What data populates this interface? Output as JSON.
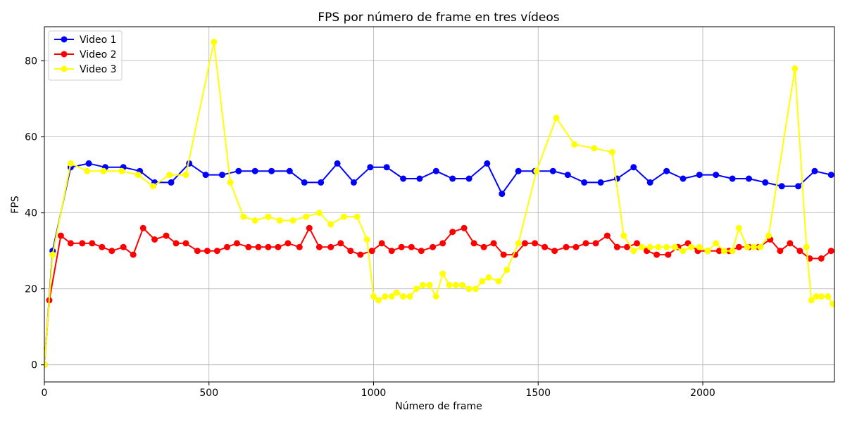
{
  "chart_data": {
    "type": "line",
    "title": "FPS por número de frame en tres vídeos",
    "xlabel": "Número de frame",
    "ylabel": "FPS",
    "xlim": [
      0,
      2400
    ],
    "ylim": [
      -4.5,
      89
    ],
    "xticks": [
      0,
      500,
      1000,
      1500,
      2000
    ],
    "yticks": [
      0,
      20,
      40,
      60,
      80
    ],
    "grid": true,
    "legend_position": "top-left",
    "series": [
      {
        "name": "Video 1",
        "color": "#0000ff",
        "points": [
          [
            0,
            0
          ],
          [
            25,
            30
          ],
          [
            80,
            52
          ],
          [
            135,
            53
          ],
          [
            185,
            52
          ],
          [
            240,
            52
          ],
          [
            290,
            51
          ],
          [
            335,
            48
          ],
          [
            385,
            48
          ],
          [
            440,
            53
          ],
          [
            490,
            50
          ],
          [
            540,
            50
          ],
          [
            590,
            51
          ],
          [
            640,
            51
          ],
          [
            690,
            51
          ],
          [
            745,
            51
          ],
          [
            790,
            48
          ],
          [
            840,
            48
          ],
          [
            890,
            53
          ],
          [
            940,
            48
          ],
          [
            990,
            52
          ],
          [
            1040,
            52
          ],
          [
            1090,
            49
          ],
          [
            1140,
            49
          ],
          [
            1190,
            51
          ],
          [
            1240,
            49
          ],
          [
            1290,
            49
          ],
          [
            1345,
            53
          ],
          [
            1390,
            45
          ],
          [
            1440,
            51
          ],
          [
            1490,
            51
          ],
          [
            1545,
            51
          ],
          [
            1590,
            50
          ],
          [
            1640,
            48
          ],
          [
            1690,
            48
          ],
          [
            1740,
            49
          ],
          [
            1790,
            52
          ],
          [
            1840,
            48
          ],
          [
            1890,
            51
          ],
          [
            1940,
            49
          ],
          [
            1990,
            50
          ],
          [
            2040,
            50
          ],
          [
            2090,
            49
          ],
          [
            2140,
            49
          ],
          [
            2190,
            48
          ],
          [
            2240,
            47
          ],
          [
            2290,
            47
          ],
          [
            2340,
            51
          ],
          [
            2390,
            50
          ]
        ]
      },
      {
        "name": "Video 2",
        "color": "#ff0000",
        "points": [
          [
            0,
            0
          ],
          [
            15,
            17
          ],
          [
            50,
            34
          ],
          [
            80,
            32
          ],
          [
            115,
            32
          ],
          [
            145,
            32
          ],
          [
            175,
            31
          ],
          [
            205,
            30
          ],
          [
            240,
            31
          ],
          [
            270,
            29
          ],
          [
            300,
            36
          ],
          [
            335,
            33
          ],
          [
            370,
            34
          ],
          [
            400,
            32
          ],
          [
            430,
            32
          ],
          [
            465,
            30
          ],
          [
            495,
            30
          ],
          [
            525,
            30
          ],
          [
            555,
            31
          ],
          [
            585,
            32
          ],
          [
            620,
            31
          ],
          [
            650,
            31
          ],
          [
            680,
            31
          ],
          [
            710,
            31
          ],
          [
            740,
            32
          ],
          [
            775,
            31
          ],
          [
            805,
            36
          ],
          [
            835,
            31
          ],
          [
            870,
            31
          ],
          [
            900,
            32
          ],
          [
            930,
            30
          ],
          [
            960,
            29
          ],
          [
            995,
            30
          ],
          [
            1025,
            32
          ],
          [
            1055,
            30
          ],
          [
            1085,
            31
          ],
          [
            1115,
            31
          ],
          [
            1145,
            30
          ],
          [
            1180,
            31
          ],
          [
            1210,
            32
          ],
          [
            1240,
            35
          ],
          [
            1275,
            36
          ],
          [
            1305,
            32
          ],
          [
            1335,
            31
          ],
          [
            1365,
            32
          ],
          [
            1395,
            29
          ],
          [
            1430,
            29
          ],
          [
            1460,
            32
          ],
          [
            1490,
            32
          ],
          [
            1520,
            31
          ],
          [
            1550,
            30
          ],
          [
            1585,
            31
          ],
          [
            1615,
            31
          ],
          [
            1645,
            32
          ],
          [
            1675,
            32
          ],
          [
            1710,
            34
          ],
          [
            1740,
            31
          ],
          [
            1770,
            31
          ],
          [
            1800,
            32
          ],
          [
            1830,
            30
          ],
          [
            1860,
            29
          ],
          [
            1895,
            29
          ],
          [
            1925,
            31
          ],
          [
            1955,
            32
          ],
          [
            1985,
            30
          ],
          [
            2015,
            30
          ],
          [
            2050,
            30
          ],
          [
            2080,
            30
          ],
          [
            2110,
            31
          ],
          [
            2140,
            31
          ],
          [
            2170,
            31
          ],
          [
            2205,
            33
          ],
          [
            2235,
            30
          ],
          [
            2265,
            32
          ],
          [
            2295,
            30
          ],
          [
            2325,
            28
          ],
          [
            2360,
            28
          ],
          [
            2390,
            30
          ]
        ]
      },
      {
        "name": "Video 3",
        "color": "#ffff00",
        "points": [
          [
            0,
            0
          ],
          [
            25,
            29
          ],
          [
            80,
            53
          ],
          [
            130,
            51
          ],
          [
            180,
            51
          ],
          [
            235,
            51
          ],
          [
            285,
            50
          ],
          [
            330,
            47
          ],
          [
            380,
            50
          ],
          [
            430,
            50
          ],
          [
            515,
            85
          ],
          [
            565,
            48
          ],
          [
            605,
            39
          ],
          [
            640,
            38
          ],
          [
            680,
            39
          ],
          [
            715,
            38
          ],
          [
            755,
            38
          ],
          [
            795,
            39
          ],
          [
            835,
            40
          ],
          [
            870,
            37
          ],
          [
            910,
            39
          ],
          [
            950,
            39
          ],
          [
            980,
            33
          ],
          [
            1000,
            18
          ],
          [
            1015,
            17
          ],
          [
            1035,
            18
          ],
          [
            1055,
            18
          ],
          [
            1070,
            19
          ],
          [
            1090,
            18
          ],
          [
            1110,
            18
          ],
          [
            1130,
            20
          ],
          [
            1150,
            21
          ],
          [
            1170,
            21
          ],
          [
            1190,
            18
          ],
          [
            1210,
            24
          ],
          [
            1230,
            21
          ],
          [
            1250,
            21
          ],
          [
            1270,
            21
          ],
          [
            1290,
            20
          ],
          [
            1310,
            20
          ],
          [
            1330,
            22
          ],
          [
            1350,
            23
          ],
          [
            1380,
            22
          ],
          [
            1405,
            25
          ],
          [
            1440,
            32
          ],
          [
            1495,
            51
          ],
          [
            1555,
            65
          ],
          [
            1610,
            58
          ],
          [
            1670,
            57
          ],
          [
            1725,
            56
          ],
          [
            1760,
            34
          ],
          [
            1790,
            30
          ],
          [
            1815,
            31
          ],
          [
            1840,
            31
          ],
          [
            1865,
            31
          ],
          [
            1890,
            31
          ],
          [
            1915,
            31
          ],
          [
            1940,
            30
          ],
          [
            1965,
            31
          ],
          [
            1990,
            31
          ],
          [
            2015,
            30
          ],
          [
            2040,
            32
          ],
          [
            2065,
            30
          ],
          [
            2090,
            30
          ],
          [
            2110,
            36
          ],
          [
            2135,
            31
          ],
          [
            2155,
            31
          ],
          [
            2175,
            31
          ],
          [
            2200,
            34
          ],
          [
            2280,
            78
          ],
          [
            2315,
            31
          ],
          [
            2330,
            17
          ],
          [
            2345,
            18
          ],
          [
            2360,
            18
          ],
          [
            2380,
            18
          ],
          [
            2395,
            16
          ]
        ]
      }
    ]
  }
}
